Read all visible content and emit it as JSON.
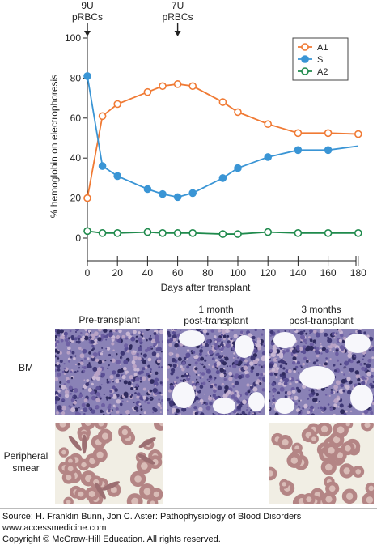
{
  "chart_data": {
    "type": "line",
    "xlabel": "Days after transplant",
    "ylabel": "% hemoglobin on electrophoresis",
    "xlim": [
      0,
      200
    ],
    "ylim": [
      0,
      100
    ],
    "x_ticks": [
      0,
      20,
      40,
      60,
      80,
      100,
      120,
      140,
      160,
      180
    ],
    "y_ticks": [
      0,
      20,
      40,
      60,
      80,
      100
    ],
    "legend_position": "top-right",
    "annotations": [
      {
        "label": "9U\npRBCs",
        "x": 0
      },
      {
        "label": "7U\npRBCs",
        "x": 60
      }
    ],
    "series": [
      {
        "name": "A1",
        "color": "#f07a34",
        "points": [
          [
            0,
            20
          ],
          [
            10,
            61
          ],
          [
            20,
            67
          ],
          [
            40,
            73
          ],
          [
            50,
            76
          ],
          [
            60,
            77
          ],
          [
            70,
            76
          ],
          [
            90,
            68
          ],
          [
            100,
            63
          ],
          [
            120,
            57
          ],
          [
            140,
            52.5
          ],
          [
            160,
            52.5
          ],
          [
            180,
            52
          ]
        ],
        "markers_until": 180
      },
      {
        "name": "S",
        "color": "#3a95d5",
        "points": [
          [
            0,
            81
          ],
          [
            10,
            36
          ],
          [
            20,
            31
          ],
          [
            40,
            24.5
          ],
          [
            50,
            22
          ],
          [
            60,
            20.5
          ],
          [
            70,
            22.5
          ],
          [
            90,
            30
          ],
          [
            100,
            35
          ],
          [
            120,
            40.5
          ],
          [
            140,
            44
          ],
          [
            160,
            44
          ],
          [
            180,
            46
          ]
        ],
        "markers_until": 160
      },
      {
        "name": "A2",
        "color": "#1f8a4c",
        "points": [
          [
            0,
            3.5
          ],
          [
            10,
            2.5
          ],
          [
            20,
            2.5
          ],
          [
            40,
            3
          ],
          [
            50,
            2.5
          ],
          [
            60,
            2.5
          ],
          [
            70,
            2.5
          ],
          [
            90,
            2
          ],
          [
            100,
            2
          ],
          [
            120,
            3
          ],
          [
            140,
            2.5
          ],
          [
            160,
            2.5
          ],
          [
            180,
            2.5
          ]
        ],
        "markers_until": 180
      }
    ]
  },
  "panels": {
    "col_headers": [
      "Pre-transplant",
      "1 month\npost-transplant",
      "3 months\npost-transplant"
    ],
    "row_labels": [
      "BM",
      "Peripheral\nsmear"
    ]
  },
  "source": {
    "line1": "Source: H. Franklin Bunn, Jon C. Aster: Pathophysiology of Blood Disorders",
    "line2": "www.accessmedicine.com",
    "line3": "Copyright © McGraw-Hill Education. All rights reserved."
  },
  "colors": {
    "bm_base": "#7a6ea8",
    "smear_bg": "#f1eee4",
    "rbc": "#b48585"
  }
}
